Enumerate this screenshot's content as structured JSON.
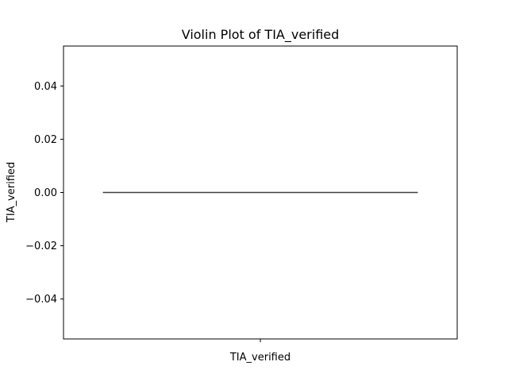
{
  "chart_data": {
    "type": "violin",
    "title": "Violin Plot of TIA_verified",
    "xlabel": "",
    "ylabel": "TIA_verified",
    "categories": [
      "TIA_verified"
    ],
    "series": [
      {
        "values": [
          0.0
        ]
      }
    ],
    "ylim": [
      -0.055,
      0.055
    ],
    "yticks": [
      -0.04,
      -0.02,
      0.0,
      0.02,
      0.04
    ],
    "ytick_labels": [
      "−0.04",
      "−0.02",
      "0.00",
      "0.02",
      "0.04"
    ],
    "grid": false,
    "legend": "none",
    "line_color": "#404040"
  }
}
